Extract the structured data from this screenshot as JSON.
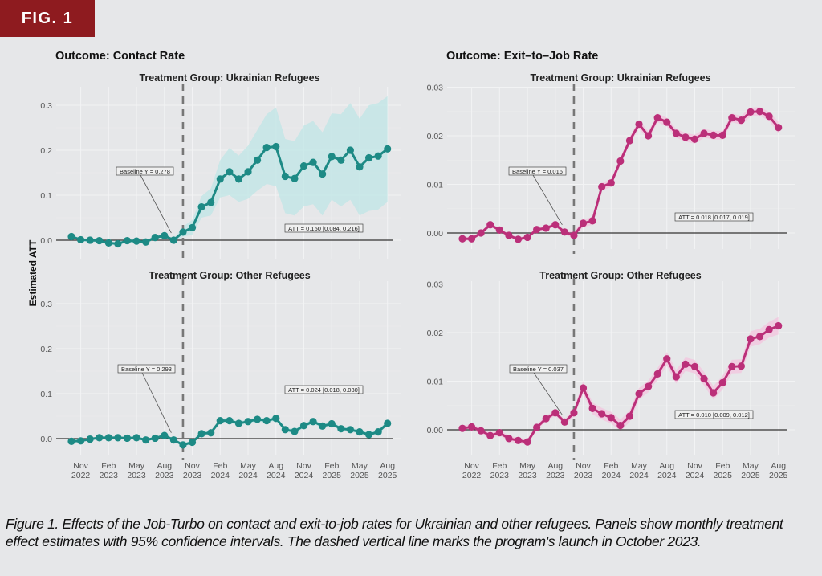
{
  "figure": {
    "tab_label": "FIG. 1",
    "caption": "Figure 1. Effects of the Job-Turbo on contact and exit-to-job rates for Ukrainian and other refugees. Panels show monthly treatment effect estimates with 95% confidence intervals. The dashed vertical line marks the program's launch in October 2023.",
    "y_axis_label": "Estimated ATT",
    "colors": {
      "contact": "#1d8a85",
      "contact_band": "#bfe6e6",
      "exit": "#bb2f79",
      "exit_band": "#f3c4dd",
      "tab": "#8e1b1f"
    }
  },
  "chart_data": [
    {
      "type": "line",
      "outcome_title": "Outcome: Contact Rate",
      "title": "Treatment Group: Ukrainian Refugees",
      "ylabel": "Estimated ATT",
      "ylim": [
        -0.03,
        0.33
      ],
      "yticks": [
        "0.0",
        "0.1",
        "0.2",
        "0.3"
      ],
      "ytick_values": [
        0.0,
        0.1,
        0.2,
        0.3
      ],
      "xticks": [
        "Nov 2022",
        "Feb 2023",
        "May 2023",
        "Aug 2023",
        "Nov 2023",
        "Feb 2024",
        "May 2024",
        "Aug 2024",
        "Nov 2024",
        "Feb 2025",
        "May 2025",
        "Aug 2025"
      ],
      "x": [
        "2022-10",
        "2022-11",
        "2022-12",
        "2023-01",
        "2023-02",
        "2023-03",
        "2023-04",
        "2023-05",
        "2023-06",
        "2023-07",
        "2023-08",
        "2023-09",
        "2023-10",
        "2023-11",
        "2023-12",
        "2024-01",
        "2024-02",
        "2024-03",
        "2024-04",
        "2024-05",
        "2024-06",
        "2024-07",
        "2024-08",
        "2024-09",
        "2024-10",
        "2024-11",
        "2024-12",
        "2025-01",
        "2025-02",
        "2025-03",
        "2025-04",
        "2025-05",
        "2025-06",
        "2025-07",
        "2025-08"
      ],
      "values": [
        0.008,
        0.001,
        0.0,
        -0.001,
        -0.006,
        -0.008,
        -0.001,
        -0.002,
        -0.004,
        0.006,
        0.01,
        0.0,
        0.018,
        0.028,
        0.074,
        0.084,
        0.136,
        0.152,
        0.136,
        0.152,
        0.178,
        0.206,
        0.208,
        0.142,
        0.137,
        0.165,
        0.173,
        0.147,
        0.186,
        0.178,
        0.2,
        0.163,
        0.183,
        0.187,
        0.203
      ],
      "ci_lower": [
        0.004,
        -0.003,
        -0.004,
        -0.005,
        -0.01,
        -0.012,
        -0.005,
        -0.006,
        -0.008,
        0.002,
        0.006,
        -0.004,
        0.008,
        0.012,
        0.05,
        0.055,
        0.095,
        0.1,
        0.085,
        0.092,
        0.11,
        0.125,
        0.12,
        0.06,
        0.055,
        0.075,
        0.08,
        0.055,
        0.09,
        0.075,
        0.09,
        0.055,
        0.065,
        0.068,
        0.085
      ],
      "ci_upper": [
        0.012,
        0.005,
        0.004,
        0.003,
        -0.002,
        -0.004,
        0.003,
        0.002,
        0.0,
        0.01,
        0.014,
        0.004,
        0.03,
        0.045,
        0.098,
        0.115,
        0.178,
        0.205,
        0.188,
        0.21,
        0.245,
        0.28,
        0.295,
        0.225,
        0.22,
        0.255,
        0.265,
        0.24,
        0.282,
        0.28,
        0.305,
        0.27,
        0.3,
        0.305,
        0.32
      ],
      "event_line": "2023-10",
      "baseline_annotation": {
        "label": "Baseline Y = 0.278",
        "arrow_to": "2023-09"
      },
      "att_annotation": "ATT = 0.150 [0.084, 0.216]",
      "series_color": "contact"
    },
    {
      "type": "line",
      "outcome_title": "Outcome: Contact Rate",
      "title": "Treatment Group: Other Refugees",
      "ylabel": "Estimated ATT",
      "ylim": [
        -0.03,
        0.33
      ],
      "yticks": [
        "0.0",
        "0.1",
        "0.2",
        "0.3"
      ],
      "ytick_values": [
        0.0,
        0.1,
        0.2,
        0.3
      ],
      "xticks": [
        "Nov 2022",
        "Feb 2023",
        "May 2023",
        "Aug 2023",
        "Nov 2023",
        "Feb 2024",
        "May 2024",
        "Aug 2024",
        "Nov 2024",
        "Feb 2025",
        "May 2025",
        "Aug 2025"
      ],
      "x": [
        "2022-10",
        "2022-11",
        "2022-12",
        "2023-01",
        "2023-02",
        "2023-03",
        "2023-04",
        "2023-05",
        "2023-06",
        "2023-07",
        "2023-08",
        "2023-09",
        "2023-10",
        "2023-11",
        "2023-12",
        "2024-01",
        "2024-02",
        "2024-03",
        "2024-04",
        "2024-05",
        "2024-06",
        "2024-07",
        "2024-08",
        "2024-09",
        "2024-10",
        "2024-11",
        "2024-12",
        "2025-01",
        "2025-02",
        "2025-03",
        "2025-04",
        "2025-05",
        "2025-06",
        "2025-07",
        "2025-08"
      ],
      "values": [
        -0.006,
        -0.005,
        -0.001,
        0.002,
        0.002,
        0.002,
        0.001,
        0.002,
        -0.003,
        0.001,
        0.007,
        -0.003,
        -0.014,
        -0.008,
        0.011,
        0.013,
        0.04,
        0.04,
        0.034,
        0.038,
        0.043,
        0.04,
        0.045,
        0.02,
        0.016,
        0.029,
        0.038,
        0.028,
        0.033,
        0.022,
        0.02,
        0.015,
        0.009,
        0.015,
        0.034
      ],
      "ci_lower": [
        -0.009,
        -0.008,
        -0.004,
        -0.001,
        -0.001,
        -0.001,
        -0.002,
        -0.001,
        -0.006,
        -0.002,
        0.004,
        -0.006,
        -0.018,
        -0.012,
        0.007,
        0.009,
        0.035,
        0.035,
        0.029,
        0.033,
        0.038,
        0.035,
        0.04,
        0.015,
        0.011,
        0.024,
        0.033,
        0.023,
        0.028,
        0.017,
        0.015,
        0.01,
        0.004,
        0.01,
        0.029
      ],
      "ci_upper": [
        -0.003,
        -0.002,
        0.002,
        0.005,
        0.005,
        0.005,
        0.004,
        0.005,
        0.0,
        0.004,
        0.01,
        0.0,
        -0.01,
        -0.004,
        0.015,
        0.017,
        0.045,
        0.045,
        0.039,
        0.043,
        0.048,
        0.045,
        0.05,
        0.025,
        0.021,
        0.034,
        0.043,
        0.033,
        0.038,
        0.027,
        0.025,
        0.02,
        0.014,
        0.02,
        0.039
      ],
      "event_line": "2023-10",
      "baseline_annotation": {
        "label": "Baseline Y = 0.293",
        "arrow_to": "2023-09"
      },
      "att_annotation": "ATT = 0.024 [0.018, 0.030]",
      "series_color": "contact"
    },
    {
      "type": "line",
      "outcome_title": "Outcome: Exit–to–Job Rate",
      "title": "Treatment Group: Ukrainian Refugees",
      "ylabel": "",
      "ylim": [
        -0.003,
        0.031
      ],
      "yticks": [
        "0.00",
        "0.01",
        "0.02",
        "0.03"
      ],
      "ytick_values": [
        0.0,
        0.01,
        0.02,
        0.03
      ],
      "xticks": [
        "Nov 2022",
        "Feb 2023",
        "May 2023",
        "Aug 2023",
        "Nov 2023",
        "Feb 2024",
        "May 2024",
        "Aug 2024",
        "Nov 2024",
        "Feb 2025",
        "May 2025",
        "Aug 2025"
      ],
      "x": [
        "2022-10",
        "2022-11",
        "2022-12",
        "2023-01",
        "2023-02",
        "2023-03",
        "2023-04",
        "2023-05",
        "2023-06",
        "2023-07",
        "2023-08",
        "2023-09",
        "2023-10",
        "2023-11",
        "2023-12",
        "2024-01",
        "2024-02",
        "2024-03",
        "2024-04",
        "2024-05",
        "2024-06",
        "2024-07",
        "2024-08",
        "2024-09",
        "2024-10",
        "2024-11",
        "2024-12",
        "2025-01",
        "2025-02",
        "2025-03",
        "2025-04",
        "2025-05",
        "2025-06",
        "2025-07",
        "2025-08"
      ],
      "values": [
        -0.0012,
        -0.0012,
        0.0,
        0.0017,
        0.0006,
        -0.0005,
        -0.0013,
        -0.0009,
        0.0007,
        0.001,
        0.0017,
        0.0002,
        -0.0005,
        0.002,
        0.0025,
        0.0095,
        0.0103,
        0.0148,
        0.019,
        0.0224,
        0.02,
        0.0237,
        0.0228,
        0.0205,
        0.0197,
        0.0193,
        0.0205,
        0.0201,
        0.0201,
        0.0237,
        0.0232,
        0.0249,
        0.025,
        0.024,
        0.0217
      ],
      "ci_lower": [
        -0.0016,
        -0.0016,
        -0.0004,
        0.0013,
        0.0002,
        -0.0009,
        -0.0017,
        -0.0013,
        0.0003,
        0.0006,
        0.0013,
        -0.0002,
        -0.0012,
        0.0012,
        0.0017,
        0.0087,
        0.0095,
        0.014,
        0.0182,
        0.0215,
        0.0191,
        0.0228,
        0.0219,
        0.0196,
        0.0188,
        0.0184,
        0.0196,
        0.0192,
        0.0192,
        0.0228,
        0.0223,
        0.024,
        0.0241,
        0.0231,
        0.0205
      ],
      "ci_upper": [
        -0.0008,
        -0.0008,
        0.0004,
        0.0021,
        0.001,
        -0.0001,
        -0.0009,
        -0.0005,
        0.0011,
        0.0014,
        0.0021,
        0.0006,
        0.0002,
        0.0028,
        0.0033,
        0.0103,
        0.0111,
        0.0156,
        0.0198,
        0.0233,
        0.0209,
        0.0246,
        0.0237,
        0.0214,
        0.0206,
        0.0202,
        0.0214,
        0.021,
        0.021,
        0.0246,
        0.0241,
        0.0258,
        0.0259,
        0.0249,
        0.0229
      ],
      "event_line": "2023-10",
      "baseline_annotation": {
        "label": "Baseline Y = 0.016",
        "arrow_to": "2023-09"
      },
      "att_annotation": "ATT = 0.018 [0.017, 0.019]",
      "series_color": "exit"
    },
    {
      "type": "line",
      "outcome_title": "Outcome: Exit–to–Job Rate",
      "title": "Treatment Group: Other Refugees",
      "ylabel": "",
      "ylim": [
        -0.004,
        0.031
      ],
      "yticks": [
        "0.00",
        "0.01",
        "0.02",
        "0.03"
      ],
      "ytick_values": [
        0.0,
        0.01,
        0.02,
        0.03
      ],
      "xticks": [
        "Nov 2022",
        "Feb 2023",
        "May 2023",
        "Aug 2023",
        "Nov 2023",
        "Feb 2024",
        "May 2024",
        "Aug 2024",
        "Nov 2024",
        "Feb 2025",
        "May 2025",
        "Aug 2025"
      ],
      "x": [
        "2022-10",
        "2022-11",
        "2022-12",
        "2023-01",
        "2023-02",
        "2023-03",
        "2023-04",
        "2023-05",
        "2023-06",
        "2023-07",
        "2023-08",
        "2023-09",
        "2023-10",
        "2023-11",
        "2023-12",
        "2024-01",
        "2024-02",
        "2024-03",
        "2024-04",
        "2024-05",
        "2024-06",
        "2024-07",
        "2024-08",
        "2024-09",
        "2024-10",
        "2024-11",
        "2024-12",
        "2025-01",
        "2025-02",
        "2025-03",
        "2025-04",
        "2025-05",
        "2025-06",
        "2025-07",
        "2025-08"
      ],
      "values": [
        0.0003,
        0.0006,
        -0.0002,
        -0.0012,
        -0.0006,
        -0.0018,
        -0.0022,
        -0.0025,
        0.0005,
        0.0023,
        0.0035,
        0.0016,
        0.0035,
        0.0086,
        0.0044,
        0.0033,
        0.0025,
        0.0009,
        0.0028,
        0.0074,
        0.0089,
        0.0115,
        0.0146,
        0.0109,
        0.0135,
        0.013,
        0.0105,
        0.0076,
        0.0097,
        0.013,
        0.0131,
        0.0187,
        0.0192,
        0.0206,
        0.0214
      ],
      "ci_lower": [
        -0.0003,
        0.0,
        -0.0008,
        -0.0018,
        -0.0012,
        -0.0024,
        -0.0028,
        -0.0031,
        -0.0001,
        0.0017,
        0.0029,
        0.001,
        0.0027,
        0.0074,
        0.0032,
        0.0021,
        0.0013,
        -0.0003,
        0.0016,
        0.0062,
        0.0077,
        0.0103,
        0.0132,
        0.0095,
        0.0121,
        0.0116,
        0.0091,
        0.0062,
        0.0083,
        0.0116,
        0.0117,
        0.0171,
        0.0176,
        0.019,
        0.0196
      ],
      "ci_upper": [
        0.0009,
        0.0012,
        0.0004,
        -0.0006,
        0.0,
        -0.0012,
        -0.0016,
        -0.0019,
        0.0011,
        0.0029,
        0.0041,
        0.0022,
        0.0043,
        0.01,
        0.0056,
        0.0045,
        0.0037,
        0.0021,
        0.004,
        0.0086,
        0.0101,
        0.0127,
        0.016,
        0.0123,
        0.0149,
        0.0144,
        0.0119,
        0.009,
        0.0111,
        0.0144,
        0.0145,
        0.0203,
        0.0208,
        0.0222,
        0.0232
      ],
      "event_line": "2023-10",
      "baseline_annotation": {
        "label": "Baseline Y = 0.037",
        "arrow_to": "2023-09"
      },
      "att_annotation": "ATT = 0.010 [0.009, 0.012]",
      "series_color": "exit"
    }
  ]
}
